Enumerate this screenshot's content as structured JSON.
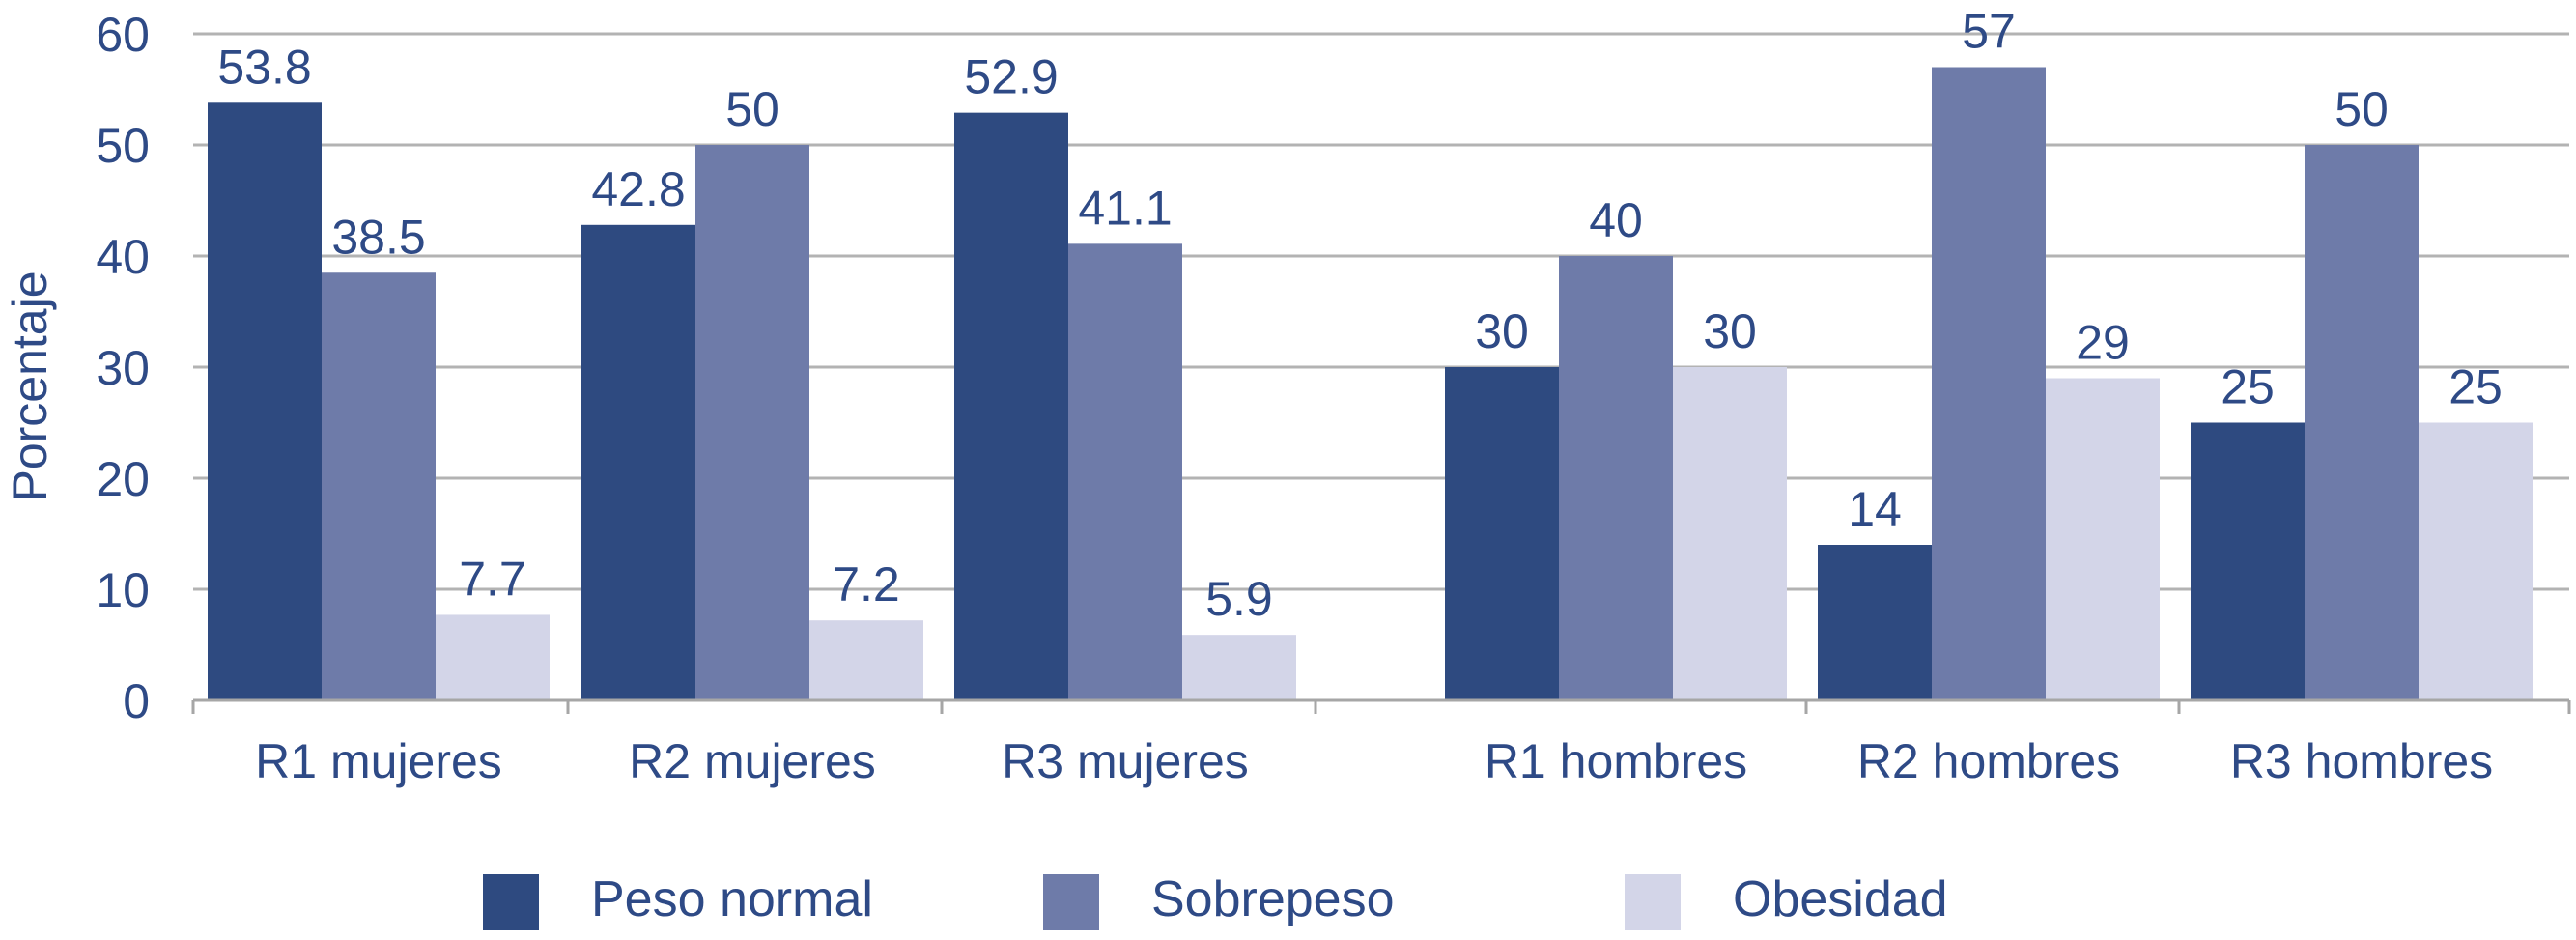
{
  "chart_data": {
    "type": "bar",
    "ylabel": "Porcentaje",
    "ylim": [
      0,
      60
    ],
    "yticks": [
      0,
      10,
      20,
      30,
      40,
      50,
      60
    ],
    "grid": true,
    "legend_position": "bottom",
    "categories": [
      "R1 mujeres",
      "R2 mujeres",
      "R3 mujeres",
      "R1 hombres",
      "R2 hombres",
      "R3 hombres"
    ],
    "series": [
      {
        "name": "Peso normal",
        "color": "#2e4a80",
        "values": [
          53.8,
          42.8,
          52.9,
          30,
          14,
          25
        ],
        "labels": [
          "53.8",
          "42.8",
          "52.9",
          "30",
          "14",
          "25"
        ]
      },
      {
        "name": "Sobrepeso",
        "color": "#6e7ba9",
        "values": [
          38.5,
          50,
          41.1,
          40,
          57,
          50
        ],
        "labels": [
          "38.5",
          "50",
          "41.1",
          "40",
          "57",
          "50"
        ]
      },
      {
        "name": "Obesidad",
        "color": "#d3d5e8",
        "values": [
          7.7,
          7.2,
          5.9,
          30,
          29,
          25
        ],
        "labels": [
          "7.7",
          "7.2",
          "5.9",
          "30",
          "29",
          "25"
        ]
      }
    ]
  }
}
